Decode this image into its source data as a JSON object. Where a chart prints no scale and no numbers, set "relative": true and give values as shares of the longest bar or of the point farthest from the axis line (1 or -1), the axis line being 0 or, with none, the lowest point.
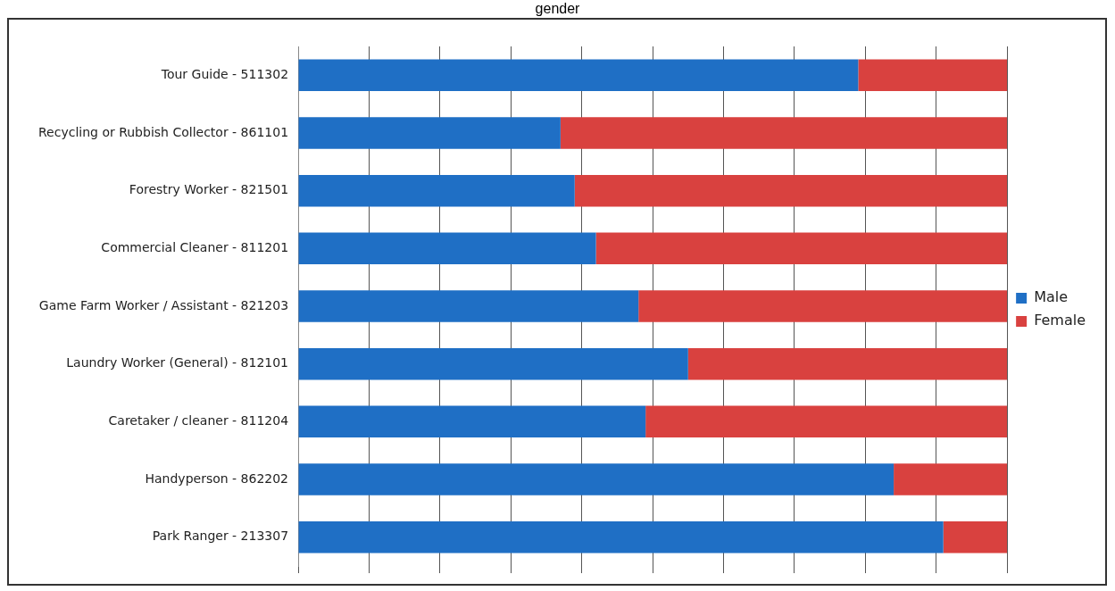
{
  "chart_data": {
    "type": "bar",
    "title": "gender",
    "orientation": "horizontal",
    "stacked": true,
    "relative": true,
    "grid": "x",
    "legend": "right",
    "categories": [
      "Tour Guide - 511302",
      "Recycling or Rubbish Collector - 861101",
      "Forestry Worker - 821501",
      "Commercial Cleaner - 811201",
      "Game Farm Worker / Assistant - 821203",
      "Laundry Worker (General) - 812101",
      "Caretaker / cleaner - 811204",
      "Handyperson - 862202",
      "Park Ranger - 213307"
    ],
    "series": [
      {
        "name": "Male",
        "color": "#1f6fc5",
        "values": [
          0.79,
          0.37,
          0.39,
          0.42,
          0.48,
          0.55,
          0.49,
          0.84,
          0.91
        ]
      },
      {
        "name": "Female",
        "color": "#d9413f",
        "values": [
          0.21,
          0.63,
          0.61,
          0.58,
          0.52,
          0.45,
          0.51,
          0.16,
          0.09
        ]
      }
    ]
  }
}
